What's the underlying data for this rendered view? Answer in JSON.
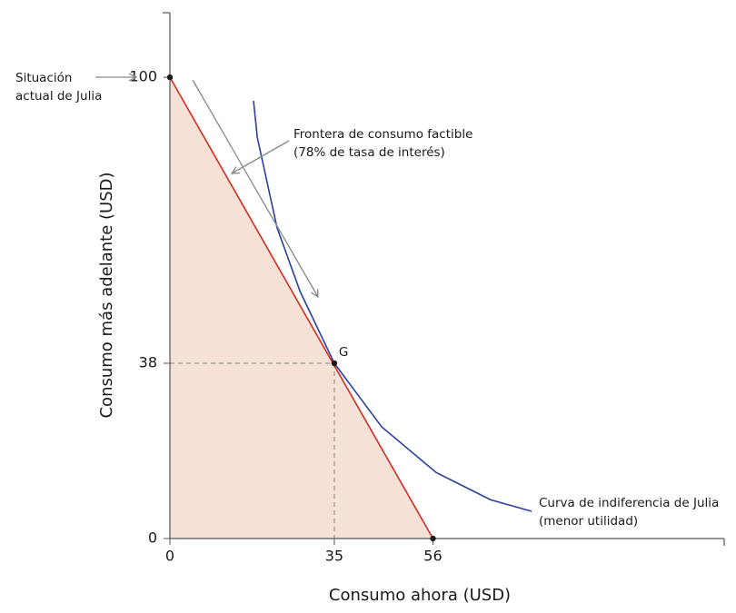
{
  "chart_data": {
    "type": "line",
    "x_label": "Consumo ahora (USD)",
    "y_label": "Consumo más adelante (USD)",
    "xlim": [
      0,
      118
    ],
    "ylim": [
      0,
      114
    ],
    "xticks": [
      0,
      35,
      56
    ],
    "yticks": [
      0,
      38,
      100
    ],
    "area_color": "#f5e1d6",
    "series": [
      {
        "color": "#d62b1f",
        "x": [
          0,
          56
        ],
        "values": [
          100,
          0
        ]
      },
      {
        "color": "#2a3f9e",
        "x": [
          17.8,
          18.6,
          22.8,
          27.7,
          35,
          45.1,
          56.7,
          68.3,
          77
        ],
        "values": [
          94.9,
          87,
          67.4,
          53.6,
          38,
          24.2,
          14.3,
          8.4,
          5.9
        ]
      }
    ],
    "points": {
      "x": [
        0,
        35,
        56
      ],
      "values": [
        100,
        38,
        0
      ]
    },
    "point_label": "G",
    "annotations": {
      "current_1": "Situación",
      "current_2": "actual de Julia",
      "frontier_1": "Frontera de consumo factible",
      "frontier_2": "(78% de tasa de interés)",
      "indiff_1": "Curva de indiferencia de Julia",
      "indiff_2": "(menor utilidad)"
    }
  }
}
